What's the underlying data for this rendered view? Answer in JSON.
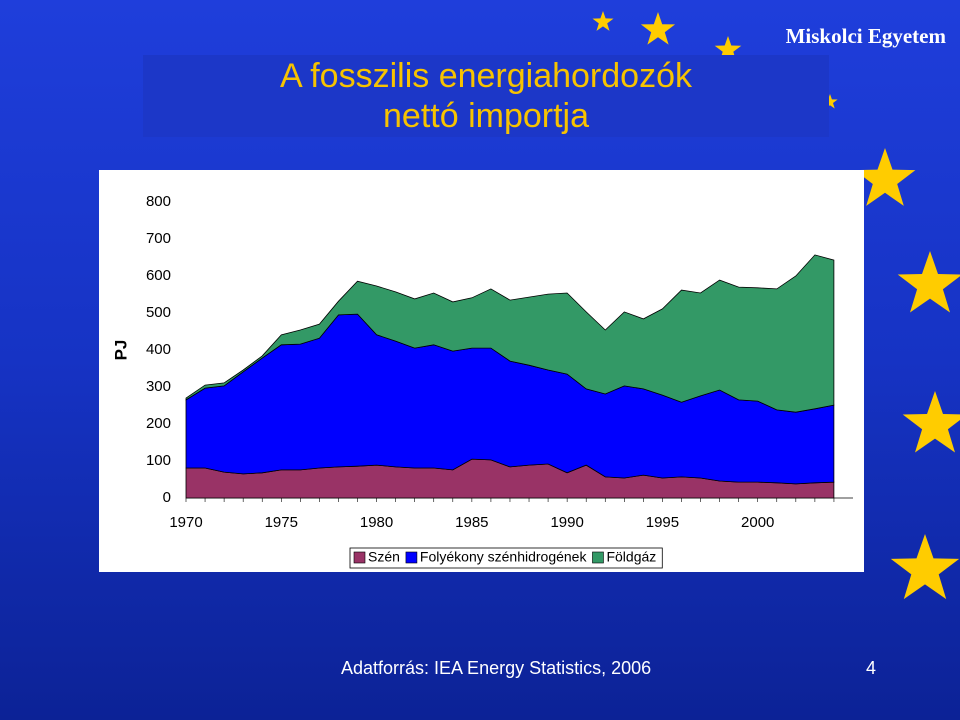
{
  "header": "Miskolci Egyetem",
  "title": [
    "A fosszilis energiahordozók",
    "nettó importja"
  ],
  "footer": {
    "source": "Adatforrás: IEA Energy Statistics, 2006",
    "page": "4"
  },
  "chart_data": {
    "type": "area",
    "stacked": true,
    "y_label": "PJ",
    "x": [
      1970,
      1971,
      1972,
      1973,
      1974,
      1975,
      1976,
      1977,
      1978,
      1979,
      1980,
      1981,
      1982,
      1983,
      1984,
      1985,
      1986,
      1987,
      1988,
      1989,
      1990,
      1991,
      1992,
      1993,
      1994,
      1995,
      1996,
      1997,
      1998,
      1999,
      2000,
      2001,
      2002,
      2003,
      2004
    ],
    "xlim": [
      1970,
      2005
    ],
    "xticks": [
      1970,
      1975,
      1980,
      1985,
      1990,
      1995,
      2000
    ],
    "ylim": [
      0,
      800
    ],
    "yticks": [
      0,
      100,
      200,
      300,
      400,
      500,
      600,
      700,
      800
    ],
    "legend": "bottom",
    "series": [
      {
        "name": "Szén",
        "color": "#993366",
        "values": [
          81,
          81,
          70,
          65,
          68,
          76,
          76,
          81,
          84,
          86,
          89,
          84,
          81,
          81,
          76,
          105,
          103,
          84,
          89,
          92,
          68,
          89,
          57,
          54,
          62,
          54,
          57,
          54,
          46,
          43,
          43,
          41,
          38,
          41,
          43
        ]
      },
      {
        "name": "Folyékony szénhidrogének",
        "color": "#0000ff",
        "values": [
          184,
          216,
          233,
          276,
          310,
          338,
          340,
          351,
          411,
          411,
          352,
          340,
          324,
          333,
          321,
          300,
          302,
          286,
          270,
          254,
          267,
          206,
          224,
          249,
          233,
          224,
          202,
          222,
          246,
          222,
          219,
          197,
          194,
          200,
          208
        ]
      },
      {
        "name": "Földgáz",
        "color": "#339966",
        "values": [
          5,
          8,
          8,
          5,
          6,
          27,
          38,
          38,
          37,
          89,
          132,
          133,
          133,
          140,
          133,
          136,
          160,
          165,
          184,
          205,
          219,
          208,
          173,
          200,
          189,
          233,
          303,
          278,
          297,
          305,
          306,
          327,
          368,
          416,
          392
        ]
      }
    ]
  }
}
